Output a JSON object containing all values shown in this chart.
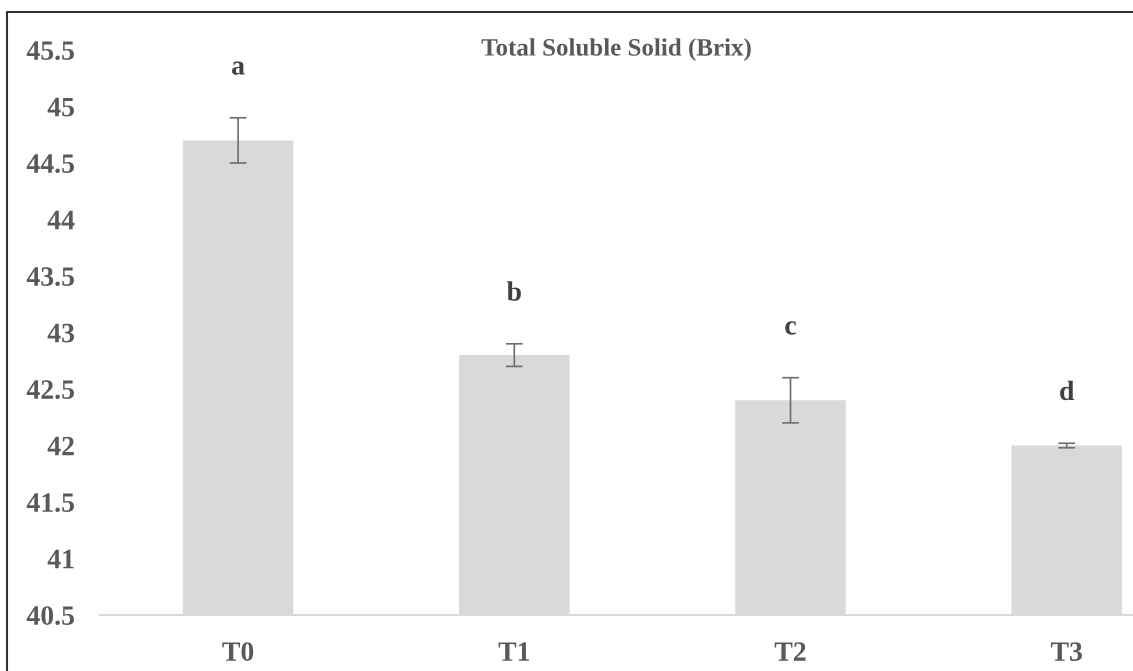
{
  "chart_data": {
    "type": "bar",
    "title": "Total Soluble Solid (Brix)",
    "categories": [
      "T0",
      "T1",
      "T2",
      "T3"
    ],
    "values": [
      44.7,
      42.8,
      42.4,
      42.0
    ],
    "errors": [
      0.2,
      0.1,
      0.2,
      0.02
    ],
    "color": "#d9d9d9",
    "ylim": [
      40.5,
      45.5
    ],
    "yticks": [
      40.5,
      41,
      41.5,
      42,
      42.5,
      43,
      43.5,
      44,
      44.5,
      45,
      45.5
    ],
    "annotations": [
      "a",
      "b",
      "c",
      "d"
    ]
  }
}
